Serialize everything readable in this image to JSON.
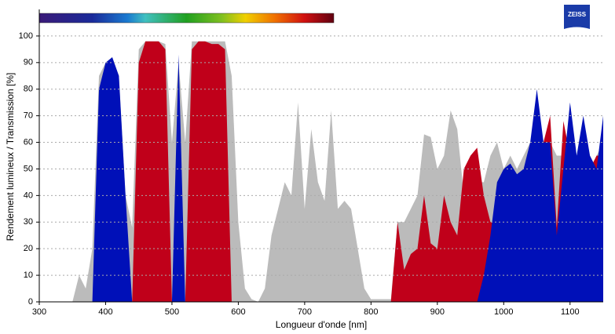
{
  "chart_data": {
    "type": "area",
    "xlabel": "Longueur d'onde [nm]",
    "ylabel": "Rendement lumineux / Transmission [%]",
    "logo": "ZEISS",
    "x": [
      350,
      360,
      370,
      380,
      390,
      400,
      410,
      420,
      430,
      440,
      450,
      460,
      470,
      480,
      490,
      500,
      510,
      520,
      530,
      540,
      550,
      560,
      570,
      580,
      590,
      600,
      610,
      620,
      630,
      640,
      650,
      660,
      670,
      680,
      690,
      700,
      710,
      720,
      730,
      740,
      750,
      760,
      770,
      780,
      790,
      800,
      810,
      820,
      830,
      840,
      850,
      860,
      870,
      880,
      890,
      900,
      910,
      920,
      930,
      940,
      950,
      960,
      970,
      980,
      990,
      1000,
      1010,
      1020,
      1030,
      1040,
      1050,
      1060,
      1070,
      1080,
      1090,
      1100,
      1110,
      1120,
      1130,
      1140,
      1150
    ],
    "series": [
      {
        "color": "#bbbbbb",
        "values": [
          0,
          10,
          5,
          20,
          85,
          90,
          92,
          85,
          40,
          28,
          95,
          98,
          98,
          98,
          97,
          60,
          90,
          60,
          98,
          98,
          98,
          98,
          98,
          98,
          85,
          30,
          5,
          1,
          0,
          5,
          25,
          35,
          45,
          40,
          75,
          35,
          65,
          45,
          38,
          72,
          35,
          38,
          35,
          20,
          5,
          1,
          1,
          1,
          1,
          30,
          30,
          35,
          40,
          63,
          62,
          50,
          55,
          72,
          65,
          40,
          35,
          45,
          45,
          55,
          60,
          50,
          55,
          50,
          55,
          60,
          65,
          55,
          60,
          55,
          55,
          55,
          50,
          50,
          50,
          55,
          60
        ]
      },
      {
        "color": "#c0001a",
        "values": [
          null,
          null,
          null,
          null,
          null,
          null,
          null,
          null,
          null,
          0,
          90,
          98,
          98,
          98,
          95,
          0,
          null,
          0,
          95,
          98,
          98,
          97,
          97,
          95,
          0,
          null,
          null,
          null,
          null,
          null,
          null,
          null,
          null,
          null,
          null,
          null,
          null,
          null,
          null,
          null,
          null,
          null,
          null,
          null,
          null,
          null,
          null,
          null,
          0,
          30,
          12,
          18,
          20,
          40,
          22,
          20,
          40,
          30,
          25,
          50,
          55,
          58,
          40,
          30,
          30,
          50,
          45,
          45,
          50,
          55,
          60,
          60,
          70,
          28,
          68,
          55,
          50,
          50,
          50,
          55,
          55
        ]
      },
      {
        "color": "#0010b8",
        "values": [
          null,
          null,
          null,
          0,
          80,
          90,
          92,
          85,
          40,
          0,
          null,
          null,
          null,
          null,
          null,
          0,
          93,
          0,
          null,
          null,
          null,
          null,
          null,
          null,
          null,
          null,
          null,
          null,
          null,
          null,
          null,
          null,
          null,
          null,
          null,
          null,
          null,
          null,
          null,
          null,
          null,
          null,
          null,
          null,
          null,
          null,
          null,
          null,
          null,
          null,
          null,
          null,
          null,
          null,
          null,
          null,
          null,
          null,
          null,
          null,
          null,
          0,
          10,
          25,
          45,
          50,
          52,
          48,
          50,
          60,
          80,
          60,
          60,
          25,
          50,
          75,
          55,
          70,
          55,
          50,
          70
        ]
      }
    ],
    "xlim": [
      300,
      1150
    ],
    "xticks": [
      300,
      400,
      500,
      600,
      700,
      800,
      900,
      1000,
      1100
    ],
    "ylim": [
      0,
      110
    ],
    "yticks": [
      0,
      10,
      20,
      30,
      40,
      50,
      60,
      70,
      80,
      90,
      100
    ],
    "grid": true
  }
}
